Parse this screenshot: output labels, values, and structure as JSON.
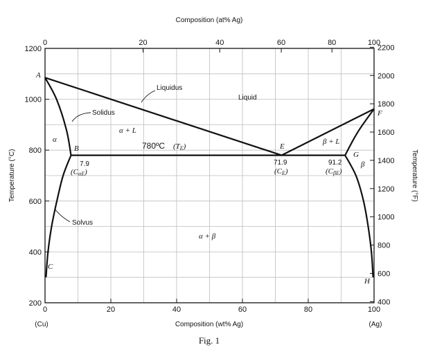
{
  "chart_data": {
    "type": "line",
    "title": "",
    "caption": "Fig. 1",
    "x_bottom": {
      "label": "Composition (wt% Ag)",
      "range": [
        0,
        100
      ],
      "ticks": [
        "0",
        "20",
        "40",
        "60",
        "80",
        "100"
      ],
      "end_labels": [
        "(Cu)",
        "(Ag)"
      ]
    },
    "x_top": {
      "label": "Composition (at% Ag)",
      "ticks": [
        {
          "text": "0",
          "wt": 0
        },
        {
          "text": "20",
          "wt": 29.8
        },
        {
          "text": "40",
          "wt": 53.1
        },
        {
          "text": "60",
          "wt": 71.8
        },
        {
          "text": "80",
          "wt": 87.2
        },
        {
          "text": "100",
          "wt": 100
        }
      ]
    },
    "y_left": {
      "label": "Temperature (°C)",
      "range": [
        200,
        1200
      ],
      "ticks": [
        "200",
        "400",
        "600",
        "800",
        "1000",
        "1200"
      ]
    },
    "y_right": {
      "label": "Temperature (°F)",
      "ticks": [
        "400",
        "600",
        "800",
        "1000",
        "1200",
        "1400",
        "1600",
        "1800",
        "2000",
        "2200"
      ]
    },
    "grid": true,
    "curves": [
      {
        "name": "liquidus-left",
        "points": [
          [
            0,
            1085
          ],
          [
            71.9,
            780
          ]
        ]
      },
      {
        "name": "liquidus-right",
        "points": [
          [
            71.9,
            780
          ],
          [
            100,
            962
          ]
        ]
      },
      {
        "name": "solidus-left",
        "points": [
          [
            0,
            1085
          ],
          [
            3.5,
            1000
          ],
          [
            6.5,
            880
          ],
          [
            7.9,
            780
          ]
        ]
      },
      {
        "name": "solidus-right",
        "points": [
          [
            100,
            962
          ],
          [
            95,
            870
          ],
          [
            91.2,
            780
          ]
        ]
      },
      {
        "name": "eutectic-isotherm",
        "points": [
          [
            7.9,
            780
          ],
          [
            91.2,
            780
          ]
        ]
      },
      {
        "name": "solvus-left",
        "points": [
          [
            7.9,
            780
          ],
          [
            5.5,
            700
          ],
          [
            3.6,
            600
          ],
          [
            2,
            500
          ],
          [
            0.9,
            400
          ],
          [
            0.3,
            300
          ]
        ]
      },
      {
        "name": "solvus-right",
        "points": [
          [
            91.2,
            780
          ],
          [
            94.5,
            700
          ],
          [
            96.8,
            600
          ],
          [
            98.2,
            500
          ],
          [
            99.2,
            400
          ],
          [
            99.7,
            300
          ]
        ]
      }
    ],
    "annotations": {
      "point_A": "A",
      "point_B": "B",
      "point_C": "C",
      "point_E": "E",
      "point_F": "F",
      "point_G": "G",
      "point_H": "H",
      "liquidus": "Liquidus",
      "solidus": "Solidus",
      "solvus": "Solvus",
      "liquid": "Liquid",
      "alpha": "α",
      "beta": "β",
      "alpha_l": "α + L",
      "beta_l": "β + L",
      "alpha_beta": "α + β",
      "eutectic_temp": "780ºC",
      "eutectic_temp_symbol": "(T",
      "eutectic_temp_sub": "E",
      "eutectic_temp_close": ")",
      "c_alpha_value": "7.9",
      "c_alpha_symbol": "(C",
      "c_alpha_sub": "αE",
      "c_alpha_close": ")",
      "c_e_value": "71.9",
      "c_e_symbol": "(C",
      "c_e_sub": "E",
      "c_e_close": ")",
      "c_beta_value": "91.2",
      "c_beta_symbol": "(C",
      "c_beta_sub": "βE",
      "c_beta_close": ")"
    }
  }
}
